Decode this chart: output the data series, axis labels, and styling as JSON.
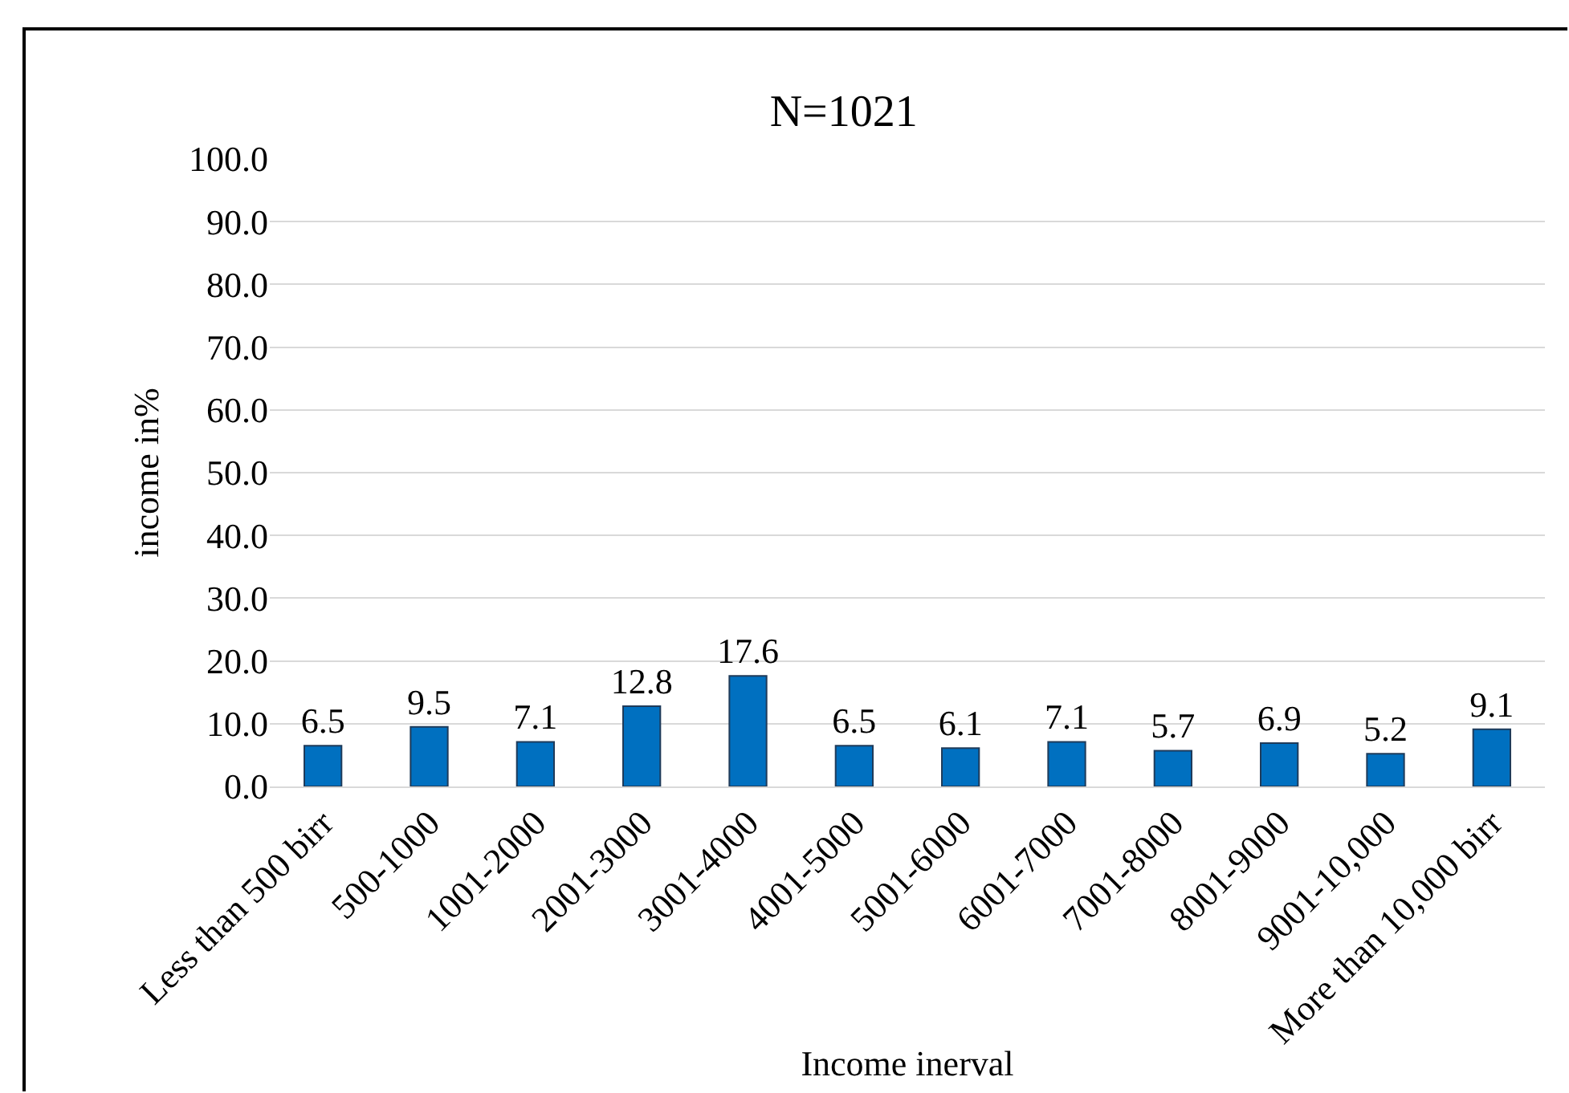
{
  "chart_data": {
    "type": "bar",
    "title": "N=1021",
    "xlabel": "Income inerval",
    "ylabel": "income in%",
    "categories": [
      "Less than 500 birr",
      "500-1000",
      "1001-2000",
      "2001-3000",
      "3001-4000",
      "4001-5000",
      "5001-6000",
      "6001-7000",
      "7001-8000",
      "8001-9000",
      "9001-10,000",
      "More than 10,000 birr"
    ],
    "values": [
      6.5,
      9.5,
      7.1,
      12.8,
      17.6,
      6.5,
      6.1,
      7.1,
      5.7,
      6.9,
      5.2,
      9.1
    ],
    "color": "#0070c0",
    "data_labels": true,
    "grid": "y",
    "ylim": [
      0,
      100
    ],
    "yticks": [
      {
        "value": 0,
        "label": "0.0"
      },
      {
        "value": 10,
        "label": "10.0"
      },
      {
        "value": 20,
        "label": "20.0"
      },
      {
        "value": 30,
        "label": "30.0"
      },
      {
        "value": 40,
        "label": "40.0"
      },
      {
        "value": 50,
        "label": "50.0"
      },
      {
        "value": 60,
        "label": "60.0"
      },
      {
        "value": 70,
        "label": "70.0"
      },
      {
        "value": 80,
        "label": "80.0"
      },
      {
        "value": 90,
        "label": "90.0"
      },
      {
        "value": 100,
        "label": "100.0"
      }
    ]
  }
}
